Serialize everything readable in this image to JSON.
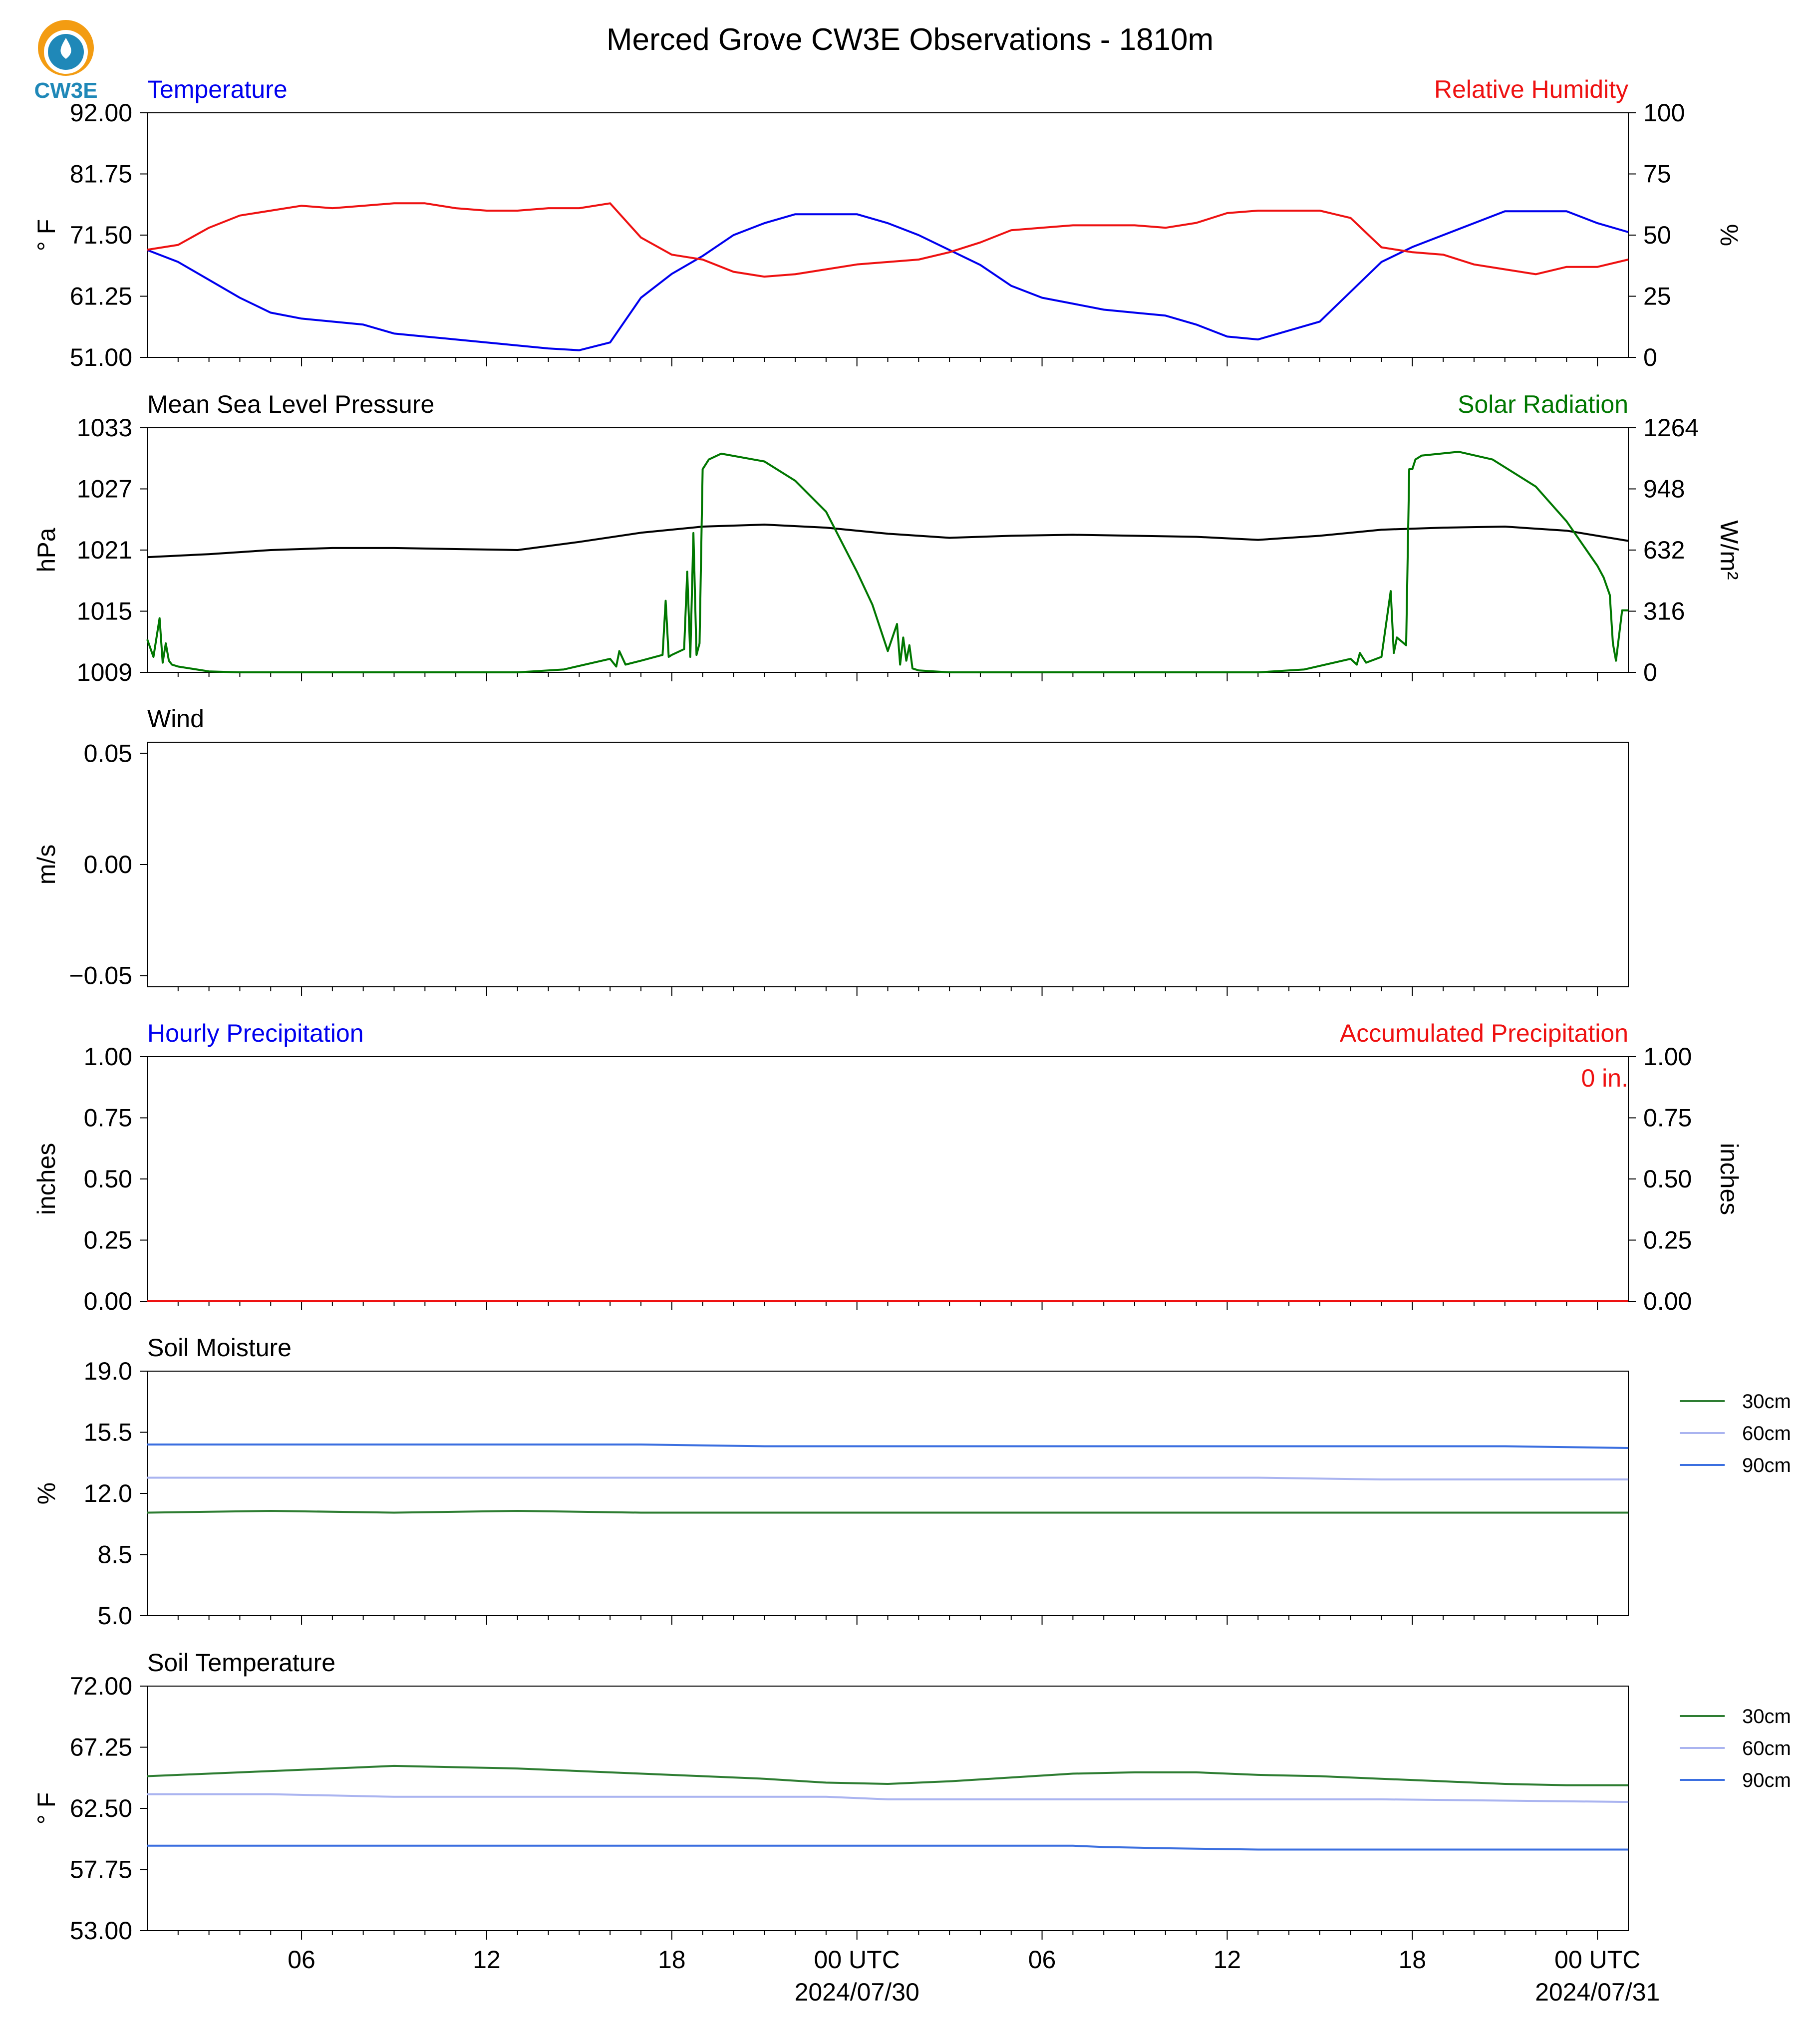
{
  "figure": {
    "title": "Merced Grove CW3E Observations - 1810m",
    "logo_text": "CW3E",
    "colors": {
      "blue": "#0000ee",
      "red": "#ee1111",
      "black": "#000000",
      "green": "#007700",
      "sm30": "#2e7d32",
      "sm60": "#aab4f0",
      "sm90": "#3b6fe0",
      "logo_orange": "#f39c12",
      "logo_blue": "#1f88b8"
    }
  },
  "time_axis": {
    "start_hour": 0,
    "end_hour": 48,
    "ticks": [
      {
        "h": 5,
        "label": "06",
        "sub": ""
      },
      {
        "h": 11,
        "label": "12",
        "sub": ""
      },
      {
        "h": 17,
        "label": "18",
        "sub": ""
      },
      {
        "h": 23,
        "label": "00 UTC",
        "sub": "2024/07/30"
      },
      {
        "h": 29,
        "label": "06",
        "sub": ""
      },
      {
        "h": 35,
        "label": "12",
        "sub": ""
      },
      {
        "h": 41,
        "label": "18",
        "sub": ""
      },
      {
        "h": 47,
        "label": "00 UTC",
        "sub": "2024/07/31"
      }
    ]
  },
  "chart_data": [
    {
      "type": "line",
      "panel": "temperature_rh",
      "left_title": "Temperature",
      "right_title": "Relative Humidity",
      "ylabel_left": "° F",
      "ylabel_right": "%",
      "ylim_left": [
        51,
        92
      ],
      "ylim_right": [
        0,
        100
      ],
      "yticks_left": [
        "51.00",
        "61.25",
        "71.50",
        "81.75",
        "92.00"
      ],
      "yticks_right": [
        "0",
        "25",
        "50",
        "75",
        "100"
      ],
      "grid": false,
      "series": [
        {
          "name": "Temperature",
          "axis": "left",
          "color": "#0000ee",
          "x": [
            0,
            1,
            2,
            3,
            4,
            5,
            6,
            7,
            8,
            9,
            10,
            11,
            12,
            13,
            14,
            15,
            16,
            17,
            18,
            19,
            20,
            21,
            22,
            23,
            24,
            25,
            26,
            27,
            28,
            29,
            30,
            31,
            32,
            33,
            34,
            35,
            36,
            37,
            38,
            39,
            40,
            41,
            42,
            43,
            44,
            45,
            46,
            47,
            48
          ],
          "y": [
            69.0,
            67.0,
            64.0,
            61.0,
            58.5,
            57.5,
            57.0,
            56.5,
            55.0,
            54.5,
            54.0,
            53.5,
            53.0,
            52.5,
            52.2,
            53.5,
            61.0,
            65.0,
            68.0,
            71.5,
            73.5,
            75.0,
            75.0,
            75.0,
            73.5,
            71.5,
            69.0,
            66.5,
            63.0,
            61.0,
            60.0,
            59.0,
            58.5,
            58.0,
            56.5,
            54.5,
            54.0,
            55.5,
            57.0,
            62.0,
            67.0,
            69.5,
            71.5,
            73.5,
            75.5,
            75.5,
            75.5,
            73.5,
            72.0
          ]
        },
        {
          "name": "Relative Humidity",
          "axis": "right",
          "color": "#ee1111",
          "x": [
            0,
            1,
            2,
            3,
            4,
            5,
            6,
            7,
            8,
            9,
            10,
            11,
            12,
            13,
            14,
            15,
            16,
            17,
            18,
            19,
            20,
            21,
            22,
            23,
            24,
            25,
            26,
            27,
            28,
            29,
            30,
            31,
            32,
            33,
            34,
            35,
            36,
            37,
            38,
            39,
            40,
            41,
            42,
            43,
            44,
            45,
            46,
            47,
            48
          ],
          "y": [
            44,
            46,
            53,
            58,
            60,
            62,
            61,
            62,
            63,
            63,
            61,
            60,
            60,
            61,
            61,
            63,
            49,
            42,
            40,
            35,
            33,
            34,
            36,
            38,
            39,
            40,
            43,
            47,
            52,
            53,
            54,
            54,
            54,
            53,
            55,
            59,
            60,
            60,
            60,
            57,
            45,
            43,
            42,
            38,
            36,
            34,
            37,
            37,
            40
          ]
        }
      ]
    },
    {
      "type": "line",
      "panel": "pressure_solar",
      "left_title": "Mean Sea Level Pressure",
      "right_title": "Solar Radiation",
      "ylabel_left": "hPa",
      "ylabel_right": "W/m²",
      "ylim_left": [
        1009,
        1033
      ],
      "ylim_right": [
        0,
        1264
      ],
      "yticks_left": [
        "1009",
        "1015",
        "1021",
        "1027",
        "1033"
      ],
      "yticks_right": [
        "0",
        "316",
        "632",
        "948",
        "1264"
      ],
      "grid": false,
      "series": [
        {
          "name": "Mean Sea Level Pressure",
          "axis": "left",
          "color": "#000000",
          "x": [
            0,
            2,
            4,
            6,
            8,
            10,
            12,
            14,
            16,
            18,
            20,
            22,
            24,
            26,
            28,
            30,
            32,
            34,
            36,
            38,
            40,
            42,
            44,
            46,
            48
          ],
          "y": [
            1020.3,
            1020.6,
            1021.0,
            1021.2,
            1021.2,
            1021.1,
            1021.0,
            1021.8,
            1022.7,
            1023.3,
            1023.5,
            1023.2,
            1022.6,
            1022.2,
            1022.4,
            1022.5,
            1022.4,
            1022.3,
            1022.0,
            1022.4,
            1023.0,
            1023.2,
            1023.3,
            1022.9,
            1021.9
          ]
        },
        {
          "name": "Solar Radiation",
          "axis": "right",
          "color": "#007700",
          "x": [
            0,
            0.2,
            0.4,
            0.5,
            0.6,
            0.7,
            0.8,
            1.0,
            2.0,
            3.0,
            4.0,
            8.0,
            12.0,
            13.5,
            15.0,
            15.2,
            15.3,
            15.5,
            16.0,
            16.7,
            16.8,
            16.9,
            17.0,
            17.4,
            17.5,
            17.6,
            17.7,
            17.8,
            17.9,
            18.0,
            18.2,
            18.6,
            20.0,
            21.0,
            22.0,
            23.0,
            23.5,
            24.0,
            24.3,
            24.4,
            24.5,
            24.6,
            24.7,
            24.8,
            25.0,
            25.5,
            26.0,
            28.0,
            32.0,
            36.0,
            37.5,
            39.0,
            39.2,
            39.3,
            39.5,
            40.0,
            40.3,
            40.4,
            40.5,
            40.8,
            40.9,
            41.0,
            41.1,
            41.3,
            42.5,
            43.6,
            45.0,
            46.0,
            47.0,
            47.2,
            47.4,
            47.5,
            47.6,
            47.8,
            48.0
          ],
          "y": [
            170,
            80,
            280,
            50,
            150,
            60,
            40,
            30,
            5,
            0,
            0,
            0,
            0,
            15,
            70,
            30,
            110,
            40,
            60,
            90,
            370,
            80,
            90,
            120,
            520,
            80,
            720,
            90,
            150,
            1050,
            1100,
            1130,
            1090,
            990,
            830,
            520,
            350,
            110,
            250,
            40,
            180,
            60,
            140,
            20,
            10,
            5,
            0,
            0,
            0,
            0,
            15,
            70,
            40,
            100,
            50,
            80,
            420,
            100,
            180,
            140,
            1050,
            1050,
            1100,
            1120,
            1140,
            1100,
            960,
            780,
            550,
            490,
            400,
            150,
            60,
            320,
            320
          ]
        }
      ]
    },
    {
      "type": "line",
      "panel": "wind",
      "left_title": "Wind",
      "ylabel_left": "m/s",
      "ylim_left": [
        -0.055,
        0.055
      ],
      "yticks_left": [
        "−0.05",
        "0.00",
        "0.05"
      ],
      "grid": false,
      "series": []
    },
    {
      "type": "line",
      "panel": "precipitation",
      "left_title": "Hourly Precipitation",
      "right_title": "Accumulated Precipitation",
      "ylabel_left": "inches",
      "ylabel_right": "inches",
      "ylim_left": [
        0,
        1
      ],
      "ylim_right": [
        0,
        1
      ],
      "yticks_left": [
        "0.00",
        "0.25",
        "0.50",
        "0.75",
        "1.00"
      ],
      "yticks_right": [
        "0.00",
        "0.25",
        "0.50",
        "0.75",
        "1.00"
      ],
      "annotation": "0 in.",
      "grid": false,
      "series": [
        {
          "name": "Hourly Precipitation",
          "axis": "left",
          "color": "#0000ee",
          "x": [
            0,
            48
          ],
          "y": [
            0,
            0
          ]
        },
        {
          "name": "Accumulated Precipitation",
          "axis": "right",
          "color": "#ee1111",
          "x": [
            0,
            48
          ],
          "y": [
            0,
            0
          ]
        }
      ]
    },
    {
      "type": "line",
      "panel": "soil_moisture",
      "left_title": "Soil Moisture",
      "ylabel_left": "%",
      "ylim_left": [
        5,
        19
      ],
      "yticks_left": [
        "5.0",
        "8.5",
        "12.0",
        "15.5",
        "19.0"
      ],
      "legend": "right",
      "grid": false,
      "series": [
        {
          "name": "30cm",
          "color": "#2e7d32",
          "x": [
            0,
            4,
            8,
            12,
            16,
            20,
            24,
            28,
            32,
            36,
            40,
            44,
            48
          ],
          "y": [
            10.9,
            11.0,
            10.9,
            11.0,
            10.9,
            10.9,
            10.9,
            10.9,
            10.9,
            10.9,
            10.9,
            10.9,
            10.9
          ]
        },
        {
          "name": "60cm",
          "color": "#aab4f0",
          "x": [
            0,
            4,
            8,
            12,
            16,
            20,
            24,
            28,
            32,
            36,
            40,
            44,
            48
          ],
          "y": [
            12.9,
            12.9,
            12.9,
            12.9,
            12.9,
            12.9,
            12.9,
            12.9,
            12.9,
            12.9,
            12.8,
            12.8,
            12.8
          ]
        },
        {
          "name": "90cm",
          "color": "#3b6fe0",
          "x": [
            0,
            4,
            8,
            12,
            16,
            20,
            24,
            28,
            32,
            36,
            40,
            44,
            48
          ],
          "y": [
            14.8,
            14.8,
            14.8,
            14.8,
            14.8,
            14.7,
            14.7,
            14.7,
            14.7,
            14.7,
            14.7,
            14.7,
            14.6
          ]
        }
      ]
    },
    {
      "type": "line",
      "panel": "soil_temperature",
      "left_title": "Soil Temperature",
      "ylabel_left": "° F",
      "ylim_left": [
        53,
        72
      ],
      "yticks_left": [
        "53.00",
        "57.75",
        "62.50",
        "67.25",
        "72.00"
      ],
      "legend": "right",
      "grid": false,
      "series": [
        {
          "name": "30cm",
          "color": "#2e7d32",
          "x": [
            0,
            2,
            4,
            6,
            8,
            10,
            12,
            14,
            16,
            18,
            20,
            22,
            24,
            26,
            28,
            30,
            32,
            34,
            36,
            38,
            40,
            42,
            44,
            46,
            48
          ],
          "y": [
            65.0,
            65.2,
            65.4,
            65.6,
            65.8,
            65.7,
            65.6,
            65.4,
            65.2,
            65.0,
            64.8,
            64.5,
            64.4,
            64.6,
            64.9,
            65.2,
            65.3,
            65.3,
            65.1,
            65.0,
            64.8,
            64.6,
            64.4,
            64.3,
            64.3
          ]
        },
        {
          "name": "60cm",
          "color": "#aab4f0",
          "x": [
            0,
            4,
            8,
            12,
            16,
            20,
            22,
            24,
            28,
            32,
            36,
            40,
            44,
            48
          ],
          "y": [
            63.6,
            63.6,
            63.4,
            63.4,
            63.4,
            63.4,
            63.4,
            63.2,
            63.2,
            63.2,
            63.2,
            63.2,
            63.1,
            63.0
          ]
        },
        {
          "name": "90cm",
          "color": "#3b6fe0",
          "x": [
            0,
            8,
            16,
            24,
            30,
            31,
            33,
            36,
            40,
            44,
            48
          ],
          "y": [
            59.6,
            59.6,
            59.6,
            59.6,
            59.6,
            59.5,
            59.4,
            59.3,
            59.3,
            59.3,
            59.3
          ]
        }
      ]
    }
  ]
}
